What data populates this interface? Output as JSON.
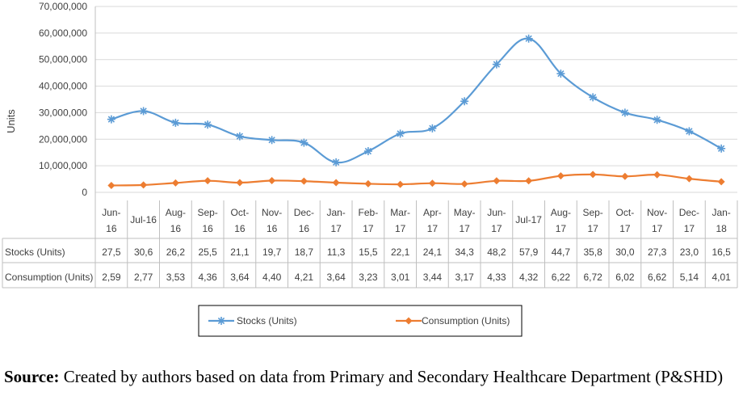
{
  "chart_data": {
    "type": "line",
    "categories": [
      [
        "Jun-",
        "16"
      ],
      [
        "Jul-16"
      ],
      [
        "Aug-",
        "16"
      ],
      [
        "Sep-",
        "16"
      ],
      [
        "Oct-",
        "16"
      ],
      [
        "Nov-",
        "16"
      ],
      [
        "Dec-",
        "16"
      ],
      [
        "Jan-",
        "17"
      ],
      [
        "Feb-",
        "17"
      ],
      [
        "Mar-",
        "17"
      ],
      [
        "Apr-",
        "17"
      ],
      [
        "May-",
        "17"
      ],
      [
        "Jun-",
        "17"
      ],
      [
        "Jul-17"
      ],
      [
        "Aug-",
        "17"
      ],
      [
        "Sep-",
        "17"
      ],
      [
        "Oct-",
        "17"
      ],
      [
        "Nov-",
        "17"
      ],
      [
        "Dec-",
        "17"
      ],
      [
        "Jan-",
        "18"
      ]
    ],
    "ylabel": "Units",
    "ylim": [
      0,
      70000000
    ],
    "yticks": [
      "70,000,000",
      "60,000,000",
      "50,000,000",
      "40,000,000",
      "30,000,000",
      "20,000,000",
      "10,000,000",
      "0"
    ],
    "series": [
      {
        "name": "Stocks (Units)",
        "color": "#5B9BD5",
        "marker": "asterisk",
        "values": [
          27500000,
          30600000,
          26200000,
          25500000,
          21100000,
          19700000,
          18700000,
          11300000,
          15500000,
          22100000,
          24100000,
          34300000,
          48200000,
          57900000,
          44700000,
          35800000,
          30000000,
          27300000,
          23000000,
          16500000
        ],
        "labels": [
          "27,5",
          "30,6",
          "26,2",
          "25,5",
          "21,1",
          "19,7",
          "18,7",
          "11,3",
          "15,5",
          "22,1",
          "24,1",
          "34,3",
          "48,2",
          "57,9",
          "44,7",
          "35,8",
          "30,0",
          "27,3",
          "23,0",
          "16,5"
        ]
      },
      {
        "name": "Consumption (Units)",
        "color": "#ED7D31",
        "marker": "diamond",
        "values": [
          2590000,
          2770000,
          3530000,
          4360000,
          3640000,
          4400000,
          4210000,
          3640000,
          3230000,
          3010000,
          3440000,
          3170000,
          4330000,
          4320000,
          6220000,
          6720000,
          6020000,
          6620000,
          5140000,
          4010000
        ],
        "labels": [
          "2,59",
          "2,77",
          "3,53",
          "4,36",
          "3,64",
          "4,40",
          "4,21",
          "3,64",
          "3,23",
          "3,01",
          "3,44",
          "3,17",
          "4,33",
          "4,32",
          "6,22",
          "6,72",
          "6,02",
          "6,62",
          "5,14",
          "4,01"
        ]
      }
    ]
  },
  "source": {
    "label": "Source:",
    "text": " Created by authors based on data from Primary and Secondary Healthcare Department (P&SHD)"
  }
}
